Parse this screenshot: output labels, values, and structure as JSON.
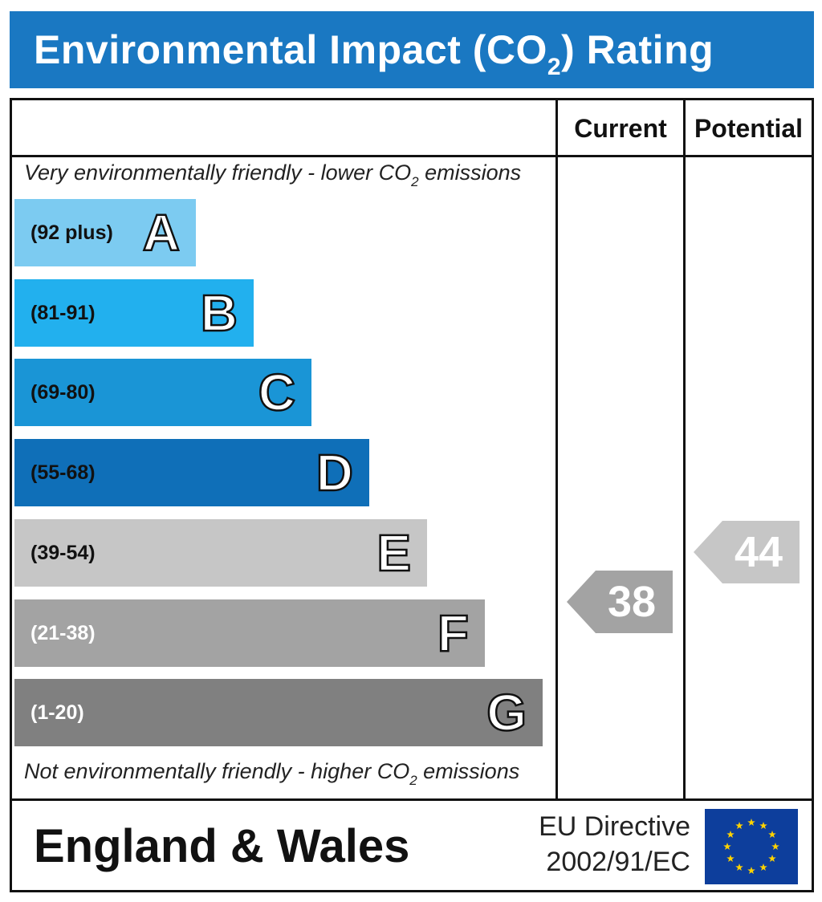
{
  "header": {
    "title_prefix": "Environmental Impact (CO",
    "title_sub": "2",
    "title_suffix": ") Rating"
  },
  "columns": {
    "current_label": "Current",
    "potential_label": "Potential"
  },
  "notes": {
    "top_prefix": "Very environmentally friendly - lower CO",
    "top_sub": "2",
    "top_suffix": " emissions",
    "bottom_prefix": "Not environmentally friendly - higher CO",
    "bottom_sub": "2",
    "bottom_suffix": " emissions"
  },
  "chart_data": {
    "type": "bar",
    "categories": [
      "A",
      "B",
      "C",
      "D",
      "E",
      "F",
      "G"
    ],
    "bands": [
      {
        "letter": "A",
        "range": "(92 plus)",
        "color": "#7ccbf1",
        "text_color": "#111111"
      },
      {
        "letter": "B",
        "range": "(81-91)",
        "color": "#22b0ee",
        "text_color": "#111111"
      },
      {
        "letter": "C",
        "range": "(69-80)",
        "color": "#1a95d6",
        "text_color": "#111111"
      },
      {
        "letter": "D",
        "range": "(55-68)",
        "color": "#0f6fb8",
        "text_color": "#111111"
      },
      {
        "letter": "E",
        "range": "(39-54)",
        "color": "#c6c6c6",
        "text_color": "#111111"
      },
      {
        "letter": "F",
        "range": "(21-38)",
        "color": "#a3a3a3",
        "text_color": "#ffffff"
      },
      {
        "letter": "G",
        "range": "(1-20)",
        "color": "#808080",
        "text_color": "#ffffff"
      }
    ],
    "current": {
      "value": "38",
      "band": "F",
      "color": "#a3a3a3"
    },
    "potential": {
      "value": "44",
      "band": "E",
      "color": "#c6c6c6"
    }
  },
  "footer": {
    "region": "England & Wales",
    "directive_line1": "EU Directive",
    "directive_line2": "2002/91/EC"
  },
  "colors": {
    "header_bg": "#1a78c2",
    "flag_blue": "#0d3e9c",
    "flag_star": "#ffd200"
  },
  "icons": {
    "flag": "eu-flag-icon"
  }
}
